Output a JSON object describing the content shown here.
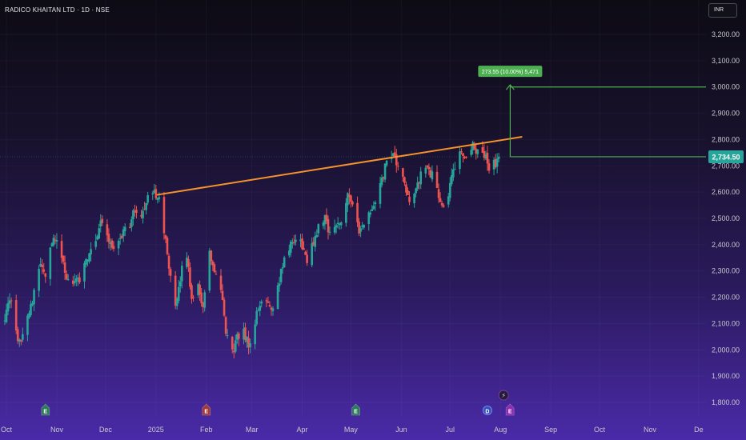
{
  "header": {
    "title": "RADICO KHAITAN LTD · 1D · NSE"
  },
  "toolbar": {
    "currency": "INR"
  },
  "chart_data": {
    "type": "candlestick",
    "ylim": [
      1780,
      3240
    ],
    "y_ticks": [
      "3,200.00",
      "3,100.00",
      "3,000.00",
      "2,900.00",
      "2,800.00",
      "2,700.00",
      "2,600.00",
      "2,500.00",
      "2,400.00",
      "2,300.00",
      "2,200.00",
      "2,100.00",
      "2,000.00",
      "1,900.00",
      "1,800.00"
    ],
    "y_tick_values": [
      3200,
      3100,
      3000,
      2900,
      2800,
      2700,
      2600,
      2500,
      2400,
      2300,
      2200,
      2100,
      2000,
      1900,
      1800
    ],
    "x_ticks": [
      "Oct",
      "Nov",
      "Dec",
      "2025",
      "Feb",
      "Mar",
      "Apr",
      "May",
      "Jun",
      "Jul",
      "Aug",
      "Sep",
      "Oct",
      "Nov",
      "De"
    ],
    "x_tick_dates": [
      "2024-10-01",
      "2024-11-01",
      "2024-12-01",
      "2025-01-01",
      "2025-02-01",
      "2025-03-01",
      "2025-04-01",
      "2025-05-01",
      "2025-06-01",
      "2025-07-01",
      "2025-08-01",
      "2025-09-01",
      "2025-10-01",
      "2025-11-01",
      "2025-12-01"
    ],
    "price_path": [
      [
        "2024-09-30",
        2130
      ],
      [
        "2024-10-04",
        2190
      ],
      [
        "2024-10-08",
        2020
      ],
      [
        "2024-10-11",
        2060
      ],
      [
        "2024-10-14",
        2140
      ],
      [
        "2024-10-18",
        2210
      ],
      [
        "2024-10-22",
        2340
      ],
      [
        "2024-10-25",
        2290
      ],
      [
        "2024-10-28",
        2400
      ],
      [
        "2024-10-31",
        2430
      ],
      [
        "2024-11-04",
        2340
      ],
      [
        "2024-11-08",
        2250
      ],
      [
        "2024-11-12",
        2270
      ],
      [
        "2024-11-15",
        2250
      ],
      [
        "2024-11-18",
        2340
      ],
      [
        "2024-11-22",
        2380
      ],
      [
        "2024-11-25",
        2420
      ],
      [
        "2024-11-28",
        2490
      ],
      [
        "2024-12-02",
        2440
      ],
      [
        "2024-12-05",
        2380
      ],
      [
        "2024-12-09",
        2420
      ],
      [
        "2024-12-12",
        2450
      ],
      [
        "2024-12-16",
        2480
      ],
      [
        "2024-12-19",
        2530
      ],
      [
        "2024-12-23",
        2520
      ],
      [
        "2024-12-26",
        2560
      ],
      [
        "2024-12-30",
        2600
      ],
      [
        "2025-01-03",
        2590
      ],
      [
        "2025-01-06",
        2460
      ],
      [
        "2025-01-09",
        2300
      ],
      [
        "2025-01-13",
        2150
      ],
      [
        "2025-01-16",
        2280
      ],
      [
        "2025-01-20",
        2360
      ],
      [
        "2025-01-23",
        2200
      ],
      [
        "2025-01-27",
        2250
      ],
      [
        "2025-01-30",
        2160
      ],
      [
        "2025-02-03",
        2360
      ],
      [
        "2025-02-06",
        2300
      ],
      [
        "2025-02-10",
        2220
      ],
      [
        "2025-02-13",
        2070
      ],
      [
        "2025-02-17",
        1990
      ],
      [
        "2025-02-20",
        2040
      ],
      [
        "2025-02-24",
        2080
      ],
      [
        "2025-02-27",
        2010
      ],
      [
        "2025-03-03",
        2110
      ],
      [
        "2025-03-06",
        2170
      ],
      [
        "2025-03-10",
        2200
      ],
      [
        "2025-03-13",
        2160
      ],
      [
        "2025-03-17",
        2230
      ],
      [
        "2025-03-20",
        2330
      ],
      [
        "2025-03-24",
        2380
      ],
      [
        "2025-03-27",
        2420
      ],
      [
        "2025-04-01",
        2400
      ],
      [
        "2025-04-04",
        2330
      ],
      [
        "2025-04-08",
        2410
      ],
      [
        "2025-04-11",
        2470
      ],
      [
        "2025-04-15",
        2510
      ],
      [
        "2025-04-18",
        2440
      ],
      [
        "2025-04-22",
        2470
      ],
      [
        "2025-04-25",
        2500
      ],
      [
        "2025-04-29",
        2600
      ],
      [
        "2025-05-02",
        2560
      ],
      [
        "2025-05-06",
        2440
      ],
      [
        "2025-05-09",
        2470
      ],
      [
        "2025-05-13",
        2530
      ],
      [
        "2025-05-16",
        2550
      ],
      [
        "2025-05-20",
        2640
      ],
      [
        "2025-05-23",
        2720
      ],
      [
        "2025-05-27",
        2730
      ],
      [
        "2025-05-30",
        2700
      ],
      [
        "2025-06-03",
        2620
      ],
      [
        "2025-06-06",
        2580
      ],
      [
        "2025-06-10",
        2600
      ],
      [
        "2025-06-13",
        2660
      ],
      [
        "2025-06-17",
        2700
      ],
      [
        "2025-06-20",
        2660
      ],
      [
        "2025-06-24",
        2590
      ],
      [
        "2025-06-27",
        2540
      ],
      [
        "2025-07-01",
        2620
      ],
      [
        "2025-07-04",
        2700
      ],
      [
        "2025-07-08",
        2750
      ],
      [
        "2025-07-11",
        2740
      ],
      [
        "2025-07-15",
        2770
      ],
      [
        "2025-07-18",
        2760
      ],
      [
        "2025-07-22",
        2740
      ],
      [
        "2025-07-25",
        2700
      ],
      [
        "2025-07-29",
        2710
      ],
      [
        "2025-07-31",
        2734.5
      ]
    ],
    "trendline": {
      "from": [
        "2025-01-02",
        2590
      ],
      "to": [
        "2025-08-14",
        2810
      ],
      "color": "#f5922c"
    },
    "target_line": {
      "value": 3000,
      "color": "#4caf50"
    },
    "current_price": {
      "value": 2734.5,
      "label": "2,734.50",
      "color": "#26a69a"
    },
    "projection": {
      "date": "2025-08-07",
      "from": 2734.5,
      "to": 3008,
      "label": "273.55 (10.00%) 5,471"
    },
    "events": [
      {
        "date": "2024-10-25",
        "letter": "E",
        "kind": "earnings-positive",
        "color": "#2e7d5a"
      },
      {
        "date": "2025-02-01",
        "letter": "E",
        "kind": "earnings-negative",
        "color": "#a23a3a"
      },
      {
        "date": "2025-05-04",
        "letter": "E",
        "kind": "earnings-positive",
        "color": "#2e7d5a"
      },
      {
        "date": "2025-07-24",
        "letter": "D",
        "kind": "dividend",
        "color": "#3a4fb5"
      },
      {
        "date": "2025-07-31",
        "letter": "E",
        "kind": "earnings-upcoming",
        "color": "#8e2bb0"
      },
      {
        "date": "2025-07-31",
        "letter": "⚡",
        "kind": "split",
        "color": "#6d3a8f"
      }
    ],
    "colors": {
      "up": "#26a69a",
      "down": "#ef5350"
    }
  }
}
